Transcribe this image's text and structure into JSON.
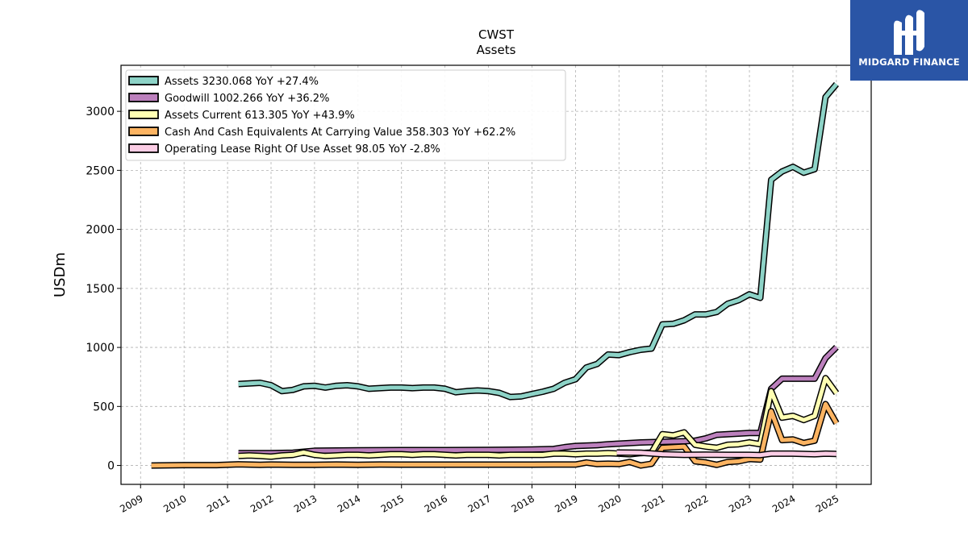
{
  "logo": {
    "text": "MIDGARD FINANCE",
    "icon": "midgard-finance-logo-icon",
    "background": "#2a55a6"
  },
  "chart_data": {
    "type": "line",
    "title": "CWST",
    "subtitle": "Assets",
    "xlabel": "",
    "ylabel": "USDm",
    "xlim": [
      2008.55,
      2025.8
    ],
    "ylim": [
      -160,
      3390
    ],
    "x_ticks": [
      "2009",
      "2010",
      "2011",
      "2012",
      "2013",
      "2014",
      "2015",
      "2016",
      "2017",
      "2018",
      "2019",
      "2020",
      "2021",
      "2022",
      "2023",
      "2024",
      "2025"
    ],
    "y_ticks": [
      "0",
      "500",
      "1000",
      "1500",
      "2000",
      "2500",
      "3000"
    ],
    "grid": true,
    "legend_position": "top-left",
    "series": [
      {
        "name": "Assets",
        "legend": "Assets  3230.068 YoY +27.4%",
        "color": "#8dd3c7",
        "points": [
          [
            2011.25,
            690
          ],
          [
            2011.5,
            695
          ],
          [
            2011.75,
            700
          ],
          [
            2012.0,
            680
          ],
          [
            2012.25,
            630
          ],
          [
            2012.5,
            640
          ],
          [
            2012.75,
            670
          ],
          [
            2013.0,
            675
          ],
          [
            2013.25,
            660
          ],
          [
            2013.5,
            675
          ],
          [
            2013.75,
            680
          ],
          [
            2014.0,
            670
          ],
          [
            2014.25,
            650
          ],
          [
            2014.5,
            655
          ],
          [
            2014.75,
            660
          ],
          [
            2015.0,
            660
          ],
          [
            2015.25,
            655
          ],
          [
            2015.5,
            660
          ],
          [
            2015.75,
            660
          ],
          [
            2016.0,
            650
          ],
          [
            2016.25,
            620
          ],
          [
            2016.5,
            630
          ],
          [
            2016.75,
            635
          ],
          [
            2017.0,
            630
          ],
          [
            2017.25,
            615
          ],
          [
            2017.5,
            580
          ],
          [
            2017.75,
            585
          ],
          [
            2018.0,
            605
          ],
          [
            2018.25,
            625
          ],
          [
            2018.5,
            650
          ],
          [
            2018.75,
            700
          ],
          [
            2019.0,
            730
          ],
          [
            2019.25,
            830
          ],
          [
            2019.5,
            860
          ],
          [
            2019.75,
            940
          ],
          [
            2020.0,
            935
          ],
          [
            2020.25,
            960
          ],
          [
            2020.5,
            980
          ],
          [
            2020.75,
            990
          ],
          [
            2021.0,
            1195
          ],
          [
            2021.25,
            1200
          ],
          [
            2021.5,
            1230
          ],
          [
            2021.75,
            1280
          ],
          [
            2022.0,
            1280
          ],
          [
            2022.25,
            1300
          ],
          [
            2022.5,
            1370
          ],
          [
            2022.75,
            1400
          ],
          [
            2023.0,
            1450
          ],
          [
            2023.25,
            1420
          ],
          [
            2023.5,
            2420
          ],
          [
            2023.75,
            2490
          ],
          [
            2024.0,
            2530
          ],
          [
            2024.25,
            2480
          ],
          [
            2024.5,
            2510
          ],
          [
            2024.75,
            3120
          ],
          [
            2025.0,
            3230
          ]
        ]
      },
      {
        "name": "Goodwill",
        "legend": "Goodwill  1002.266 YoY +36.2%",
        "color": "#bc80bd",
        "points": [
          [
            2011.25,
            105
          ],
          [
            2012.0,
            105
          ],
          [
            2012.5,
            108
          ],
          [
            2013.0,
            125
          ],
          [
            2014.0,
            128
          ],
          [
            2015.0,
            130
          ],
          [
            2016.0,
            130
          ],
          [
            2017.0,
            132
          ],
          [
            2018.0,
            135
          ],
          [
            2018.5,
            140
          ],
          [
            2018.75,
            155
          ],
          [
            2019.0,
            165
          ],
          [
            2019.5,
            172
          ],
          [
            2019.75,
            180
          ],
          [
            2020.0,
            185
          ],
          [
            2020.5,
            195
          ],
          [
            2021.0,
            200
          ],
          [
            2021.5,
            205
          ],
          [
            2021.75,
            210
          ],
          [
            2022.0,
            230
          ],
          [
            2022.25,
            260
          ],
          [
            2022.5,
            265
          ],
          [
            2022.75,
            270
          ],
          [
            2023.0,
            275
          ],
          [
            2023.25,
            275
          ],
          [
            2023.5,
            650
          ],
          [
            2023.75,
            735
          ],
          [
            2024.0,
            735
          ],
          [
            2024.25,
            735
          ],
          [
            2024.5,
            735
          ],
          [
            2024.75,
            910
          ],
          [
            2025.0,
            1002
          ]
        ]
      },
      {
        "name": "Assets Current",
        "legend": "Assets Current  613.305 YoY +43.9%",
        "color": "#ffffb3",
        "points": [
          [
            2011.25,
            80
          ],
          [
            2011.5,
            85
          ],
          [
            2011.75,
            80
          ],
          [
            2012.0,
            75
          ],
          [
            2012.25,
            85
          ],
          [
            2012.5,
            90
          ],
          [
            2012.75,
            110
          ],
          [
            2013.0,
            90
          ],
          [
            2013.25,
            80
          ],
          [
            2013.5,
            85
          ],
          [
            2013.75,
            90
          ],
          [
            2014.0,
            90
          ],
          [
            2014.25,
            85
          ],
          [
            2014.5,
            90
          ],
          [
            2014.75,
            95
          ],
          [
            2015.0,
            95
          ],
          [
            2015.25,
            90
          ],
          [
            2015.5,
            95
          ],
          [
            2015.75,
            95
          ],
          [
            2016.0,
            90
          ],
          [
            2016.25,
            85
          ],
          [
            2016.5,
            90
          ],
          [
            2016.75,
            90
          ],
          [
            2017.0,
            90
          ],
          [
            2017.25,
            85
          ],
          [
            2017.5,
            90
          ],
          [
            2017.75,
            90
          ],
          [
            2018.0,
            90
          ],
          [
            2018.25,
            90
          ],
          [
            2018.5,
            100
          ],
          [
            2018.75,
            100
          ],
          [
            2019.0,
            95
          ],
          [
            2019.25,
            100
          ],
          [
            2019.5,
            100
          ],
          [
            2019.75,
            105
          ],
          [
            2020.0,
            100
          ],
          [
            2020.25,
            95
          ],
          [
            2020.5,
            105
          ],
          [
            2020.75,
            110
          ],
          [
            2021.0,
            265
          ],
          [
            2021.25,
            255
          ],
          [
            2021.5,
            280
          ],
          [
            2021.75,
            175
          ],
          [
            2022.0,
            160
          ],
          [
            2022.25,
            150
          ],
          [
            2022.5,
            175
          ],
          [
            2022.75,
            180
          ],
          [
            2023.0,
            195
          ],
          [
            2023.25,
            180
          ],
          [
            2023.5,
            630
          ],
          [
            2023.75,
            405
          ],
          [
            2024.0,
            420
          ],
          [
            2024.25,
            385
          ],
          [
            2024.5,
            420
          ],
          [
            2024.75,
            740
          ],
          [
            2025.0,
            613
          ]
        ]
      },
      {
        "name": "Cash And Cash Equivalents At Carrying Value",
        "legend": "Cash And Cash Equivalents At Carrying Value  358.303 YoY +62.2%",
        "color": "#fdb462",
        "points": [
          [
            2009.25,
            0
          ],
          [
            2010.0,
            3
          ],
          [
            2010.75,
            3
          ],
          [
            2011.25,
            10
          ],
          [
            2011.75,
            5
          ],
          [
            2012.0,
            8
          ],
          [
            2012.5,
            5
          ],
          [
            2013.0,
            5
          ],
          [
            2013.5,
            8
          ],
          [
            2014.0,
            6
          ],
          [
            2014.5,
            8
          ],
          [
            2015.0,
            7
          ],
          [
            2015.5,
            7
          ],
          [
            2016.0,
            7
          ],
          [
            2016.5,
            7
          ],
          [
            2017.0,
            7
          ],
          [
            2017.5,
            7
          ],
          [
            2018.0,
            7
          ],
          [
            2018.5,
            8
          ],
          [
            2019.0,
            8
          ],
          [
            2019.25,
            25
          ],
          [
            2019.5,
            12
          ],
          [
            2019.75,
            15
          ],
          [
            2020.0,
            12
          ],
          [
            2020.25,
            30
          ],
          [
            2020.5,
            0
          ],
          [
            2020.75,
            15
          ],
          [
            2021.0,
            150
          ],
          [
            2021.25,
            155
          ],
          [
            2021.5,
            160
          ],
          [
            2021.75,
            35
          ],
          [
            2022.0,
            25
          ],
          [
            2022.25,
            5
          ],
          [
            2022.5,
            30
          ],
          [
            2022.75,
            35
          ],
          [
            2023.0,
            55
          ],
          [
            2023.25,
            50
          ],
          [
            2023.5,
            460
          ],
          [
            2023.75,
            215
          ],
          [
            2024.0,
            220
          ],
          [
            2024.25,
            190
          ],
          [
            2024.5,
            210
          ],
          [
            2024.75,
            520
          ],
          [
            2025.0,
            358
          ]
        ]
      },
      {
        "name": "Operating Lease Right Of Use Asset",
        "legend": "Operating Lease Right Of Use Asset  98.05 YoY -2.8%",
        "color": "#fccde5",
        "points": [
          [
            2019.95,
            110
          ],
          [
            2020.5,
            108
          ],
          [
            2021.0,
            95
          ],
          [
            2021.5,
            90
          ],
          [
            2022.0,
            92
          ],
          [
            2022.5,
            90
          ],
          [
            2023.0,
            90
          ],
          [
            2023.25,
            88
          ],
          [
            2023.5,
            100
          ],
          [
            2024.0,
            100
          ],
          [
            2024.5,
            95
          ],
          [
            2024.75,
            100
          ],
          [
            2025.0,
            98
          ]
        ]
      }
    ]
  }
}
